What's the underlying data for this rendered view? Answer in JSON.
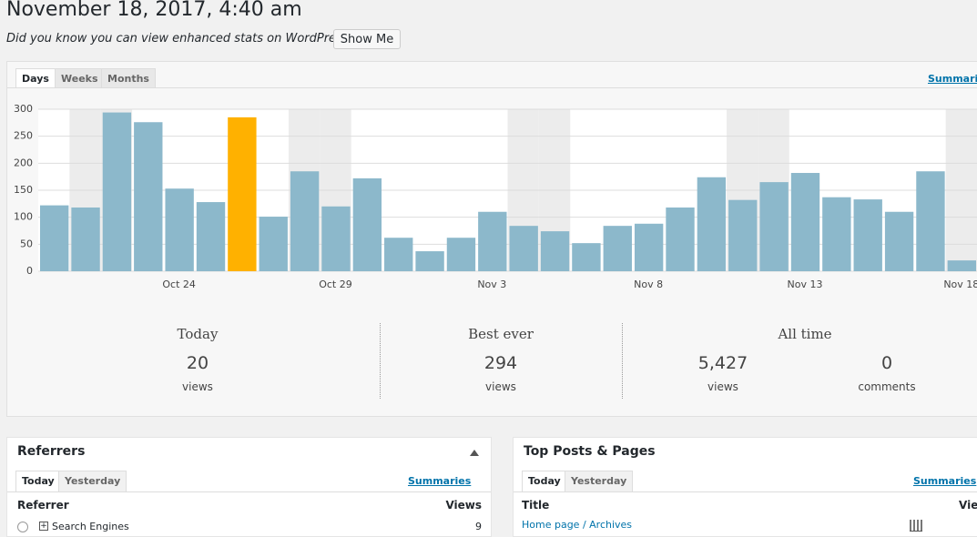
{
  "header": {
    "title": "November 18, 2017, 4:40 am",
    "notice": "Did you know you can view enhanced stats on WordPress.com?",
    "button": "Show Me"
  },
  "tabs": [
    "Days",
    "Weeks",
    "Months"
  ],
  "summaries_link": "Summaries",
  "chart_data": {
    "type": "bar",
    "categories": [
      null,
      null,
      null,
      null,
      "Oct 24",
      null,
      null,
      null,
      null,
      "Oct 29",
      null,
      null,
      null,
      null,
      "Nov 3",
      null,
      null,
      null,
      null,
      "Nov 8",
      null,
      null,
      null,
      null,
      "Nov 13",
      null,
      null,
      null,
      null,
      "Nov 18"
    ],
    "values": [
      122,
      118,
      294,
      276,
      153,
      128,
      285,
      101,
      185,
      120,
      172,
      62,
      37,
      62,
      110,
      84,
      74,
      52,
      84,
      88,
      118,
      174,
      132,
      165,
      182,
      137,
      133,
      110,
      185,
      20
    ],
    "colors": [
      "#8cb8cb",
      "#8cb8cb",
      "#8cb8cb",
      "#8cb8cb",
      "#8cb8cb",
      "#8cb8cb",
      "#ffb100",
      "#8cb8cb",
      "#8cb8cb",
      "#8cb8cb",
      "#8cb8cb",
      "#8cb8cb",
      "#8cb8cb",
      "#8cb8cb",
      "#8cb8cb",
      "#8cb8cb",
      "#8cb8cb",
      "#8cb8cb",
      "#8cb8cb",
      "#8cb8cb",
      "#8cb8cb",
      "#8cb8cb",
      "#8cb8cb",
      "#8cb8cb",
      "#8cb8cb",
      "#8cb8cb",
      "#8cb8cb",
      "#8cb8cb",
      "#8cb8cb",
      "#8cb8cb"
    ],
    "ylim": [
      0,
      300
    ],
    "yticks": [
      0,
      50,
      100,
      150,
      200,
      250,
      300
    ],
    "grid": true
  },
  "summary": {
    "today": {
      "label": "Today",
      "value": "20",
      "unit": "views"
    },
    "best": {
      "label": "Best ever",
      "value": "294",
      "unit": "views"
    },
    "all_time": {
      "label": "All time",
      "views": "5,427",
      "views_unit": "views",
      "comments": "0",
      "comments_unit": "comments"
    }
  },
  "referrers": {
    "title": "Referrers",
    "tabs": [
      "Today",
      "Yesterday"
    ],
    "summaries": "Summaries",
    "columns": [
      "Referrer",
      "Views"
    ],
    "rows": [
      [
        "Search Engines",
        "9"
      ]
    ]
  },
  "top_posts": {
    "title": "Top Posts & Pages",
    "tabs": [
      "Today",
      "Yesterday"
    ],
    "summaries": "Summaries",
    "columns": [
      "Title",
      "Views"
    ],
    "rows": [
      [
        "Home page / Archives"
      ]
    ]
  }
}
